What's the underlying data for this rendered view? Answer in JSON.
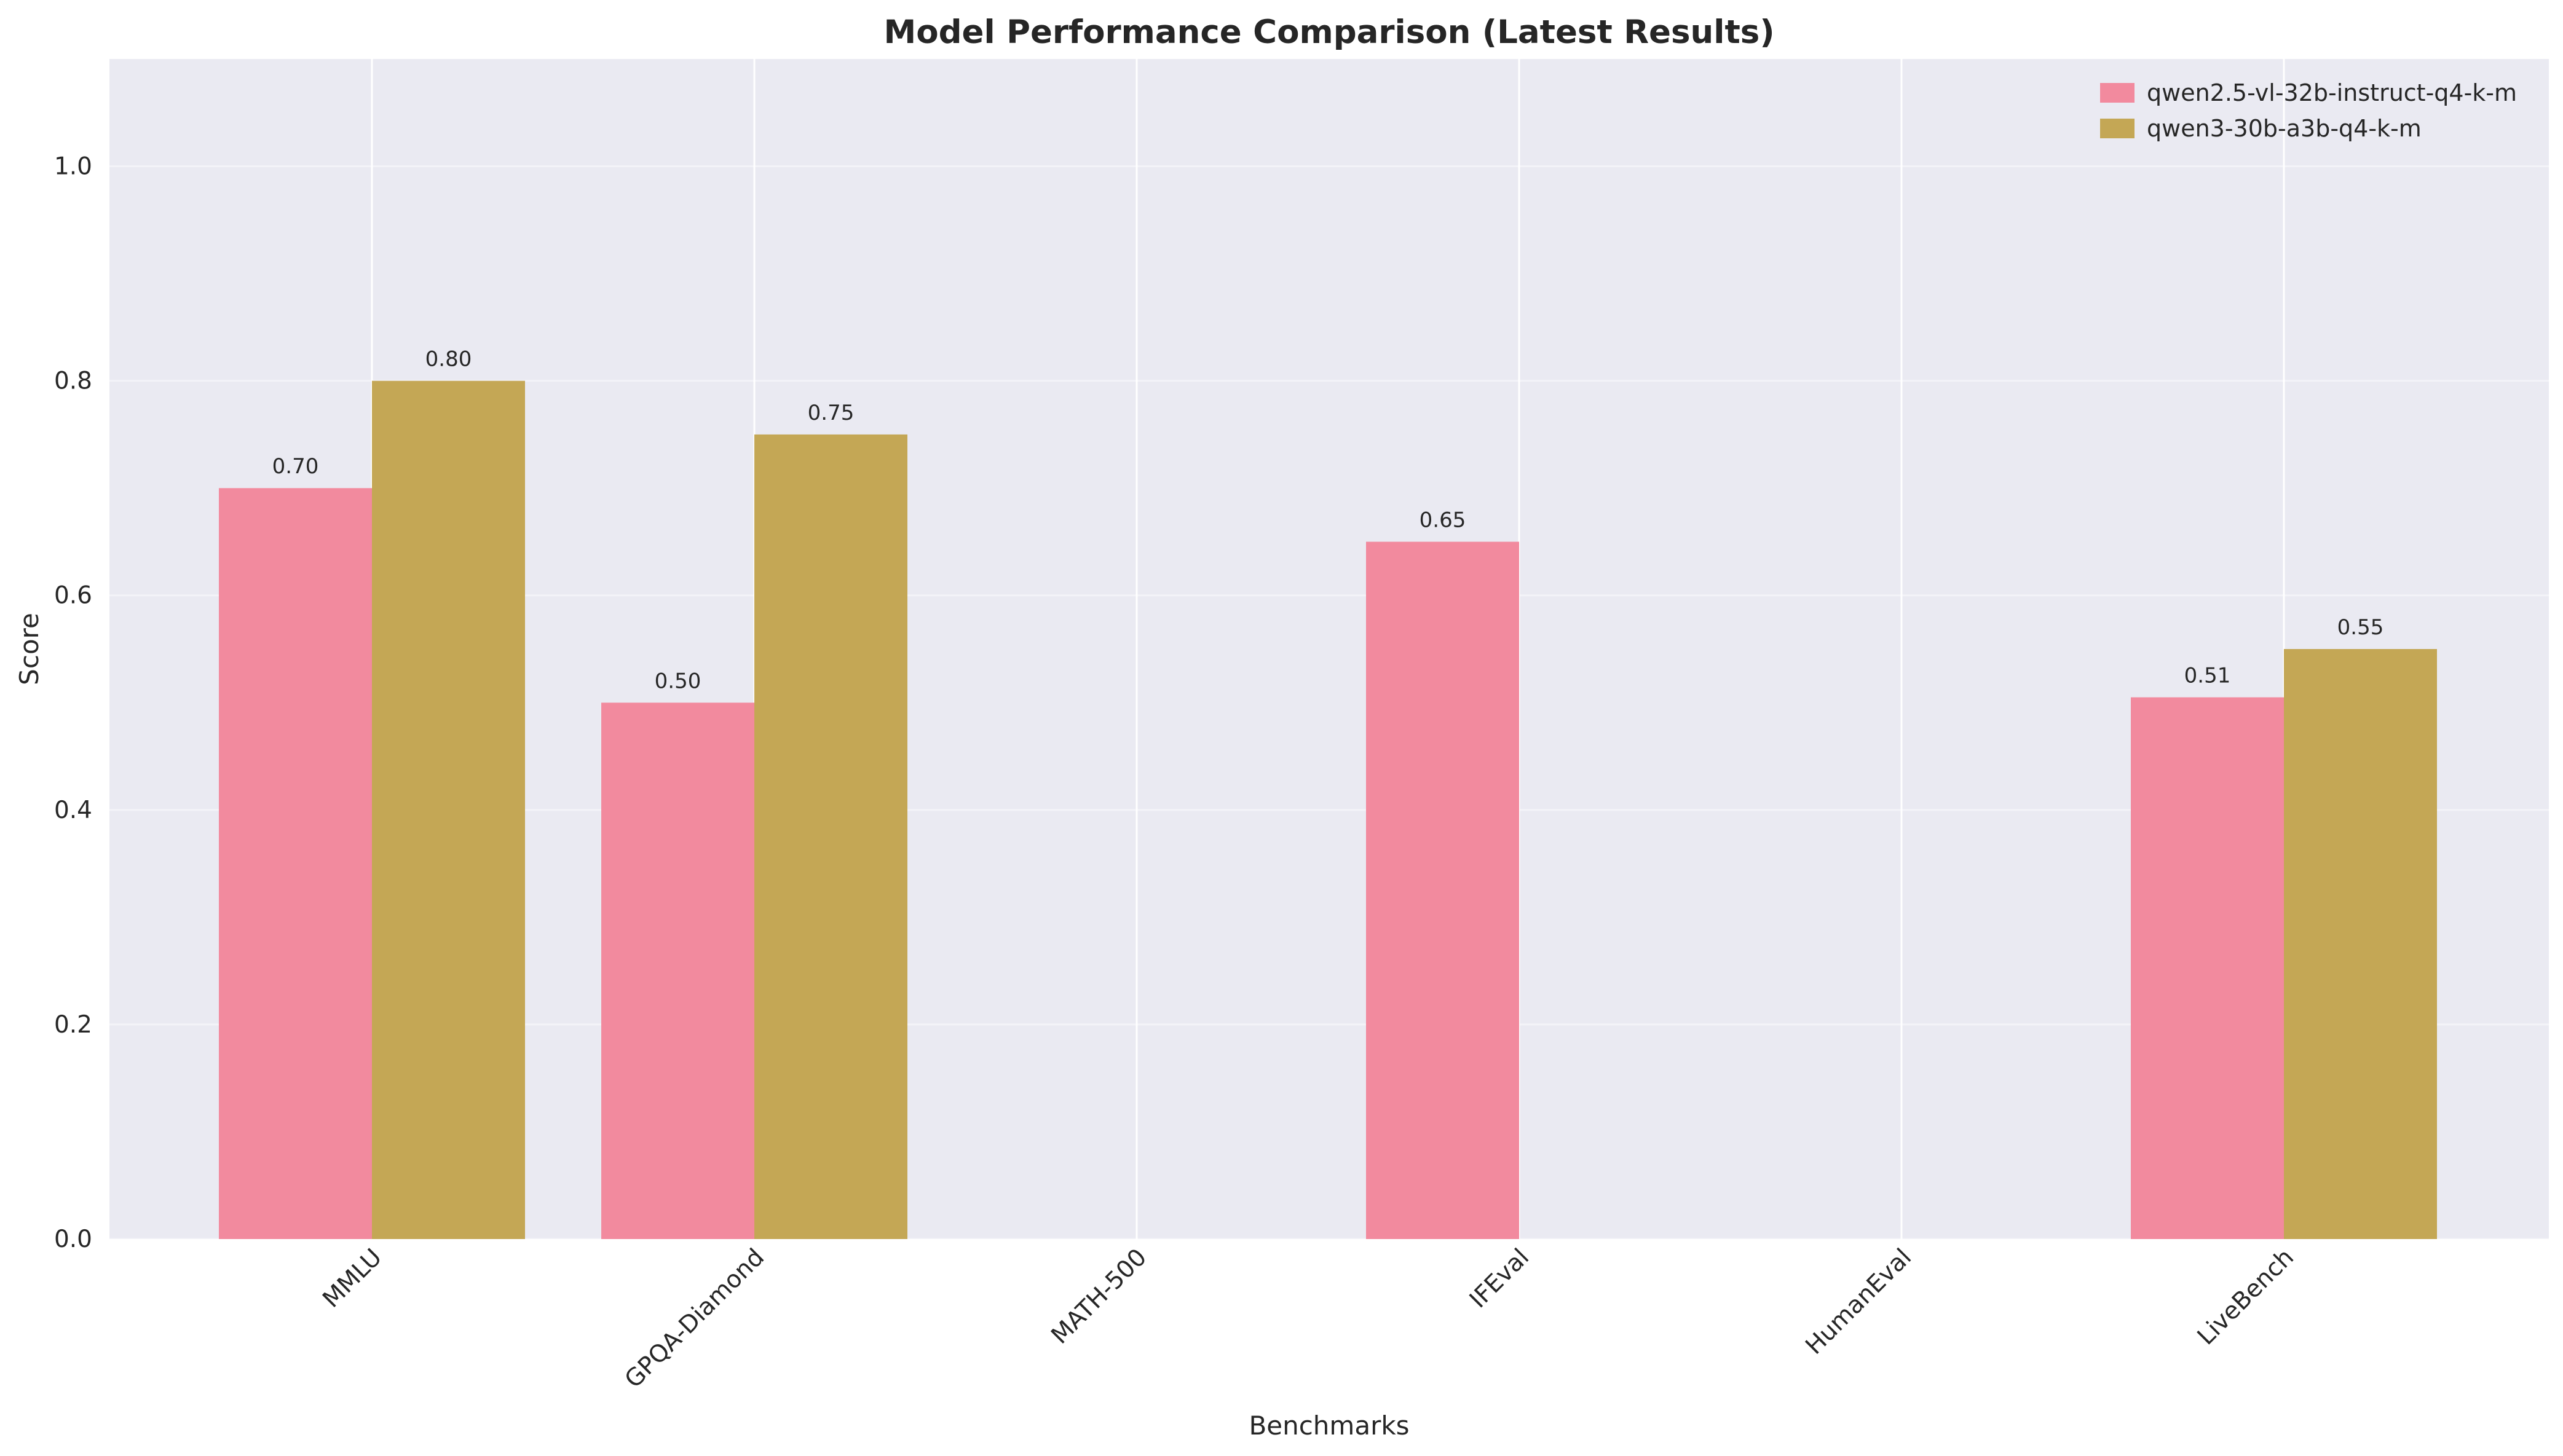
{
  "chart_data": {
    "type": "bar",
    "title": "Model Performance Comparison (Latest Results)",
    "xlabel": "Benchmarks",
    "ylabel": "Score",
    "categories": [
      "MMLU",
      "GPQA-Diamond",
      "MATH-500",
      "IFEval",
      "HumanEval",
      "LiveBench"
    ],
    "series": [
      {
        "name": "qwen2.5-vl-32b-instruct-q4-k-m",
        "color": "#f28a9e",
        "values": [
          0.7,
          0.5,
          null,
          0.65,
          null,
          0.505
        ],
        "labels": [
          "0.70",
          "0.50",
          null,
          "0.65",
          null,
          "0.51"
        ]
      },
      {
        "name": "qwen3-30b-a3b-q4-k-m",
        "color": "#c4a755",
        "values": [
          0.8,
          0.75,
          null,
          null,
          null,
          0.55
        ],
        "labels": [
          "0.80",
          "0.75",
          null,
          null,
          null,
          "0.55"
        ]
      }
    ],
    "ylim": [
      0,
      1.1
    ],
    "yticks": [
      "0.0",
      "0.2",
      "0.4",
      "0.6",
      "0.8",
      "1.0"
    ],
    "grid": true,
    "legend_position": "top-right",
    "x_tick_rotation_deg": 45
  }
}
